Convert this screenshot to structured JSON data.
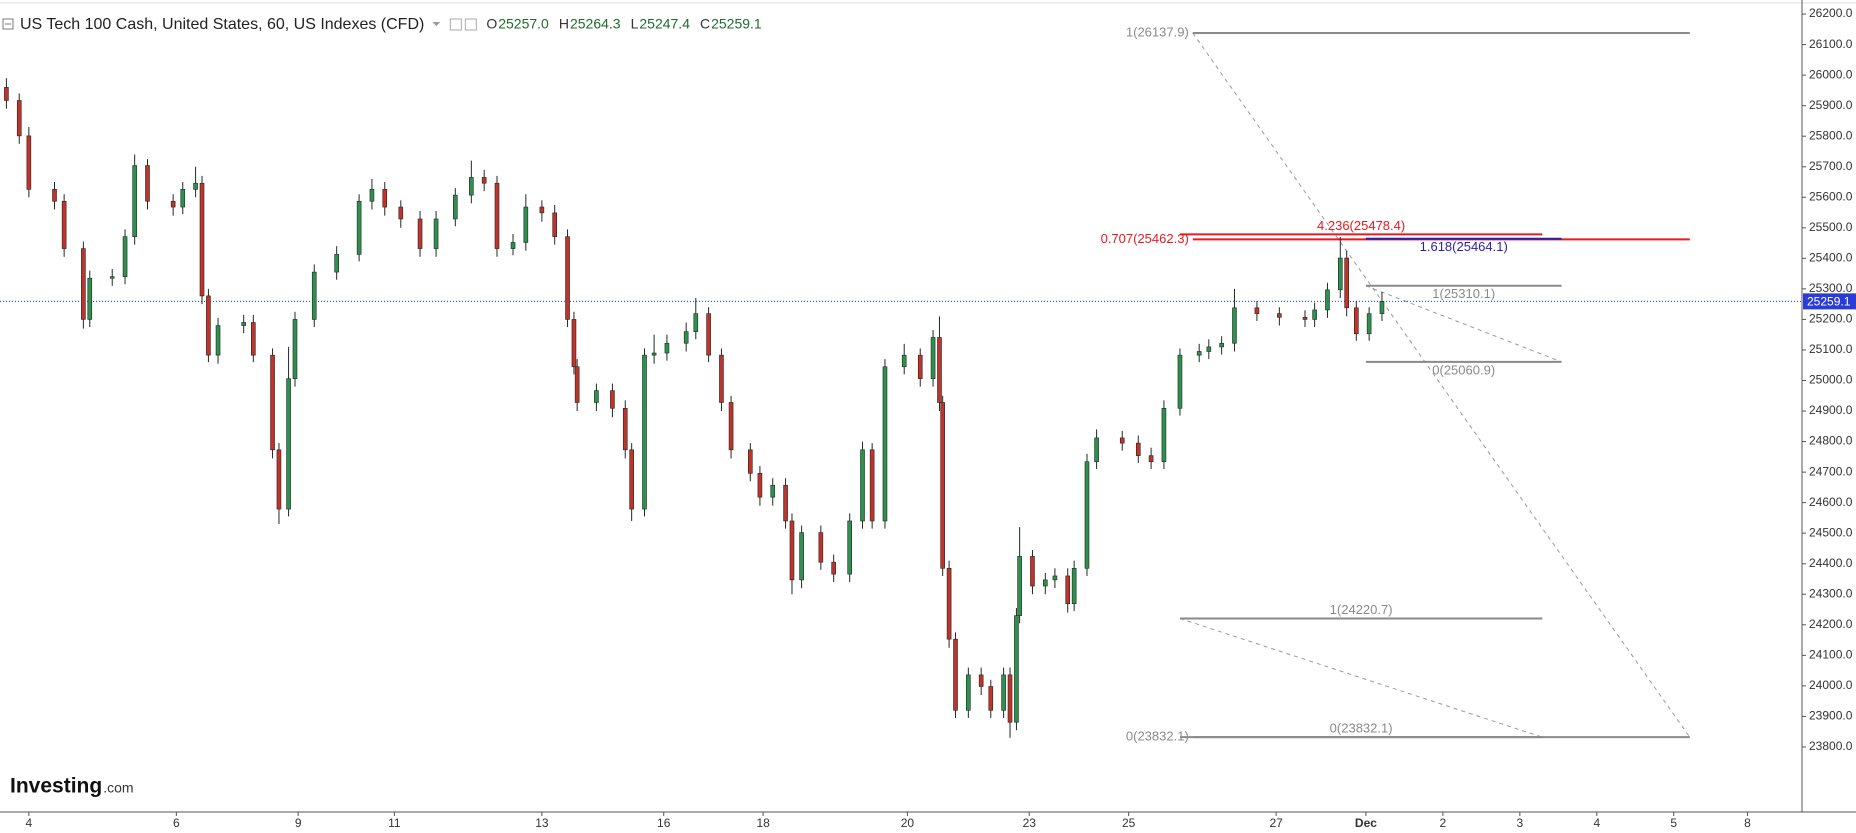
{
  "chart_data": {
    "type": "candlestick",
    "title": "US Tech 100 Cash, United States, 60, US Indexes (CFD)",
    "ohlc_legend": [
      {
        "label": "O",
        "value": "25257.0"
      },
      {
        "label": "H",
        "value": "25264.3"
      },
      {
        "label": "L",
        "value": "25247.4"
      },
      {
        "label": "C",
        "value": "25259.1"
      }
    ],
    "x": [
      0,
      4,
      7,
      15,
      18,
      24,
      26,
      33,
      37,
      40,
      44,
      52,
      55,
      59,
      61,
      63,
      66,
      74,
      77,
      83,
      85,
      88,
      90,
      96,
      103,
      110,
      114,
      118,
      123,
      129,
      134,
      140,
      145,
      149,
      153,
      158,
      162,
      167,
      171,
      175,
      177,
      178,
      184,
      189,
      193,
      195,
      199,
      202,
      206,
      212,
      215,
      219,
      223,
      226,
      232,
      235,
      239,
      243,
      245,
      248,
      254,
      258,
      263,
      267,
      270,
      274,
      280,
      285,
      289,
      291,
      292,
      294,
      296,
      300,
      304,
      307,
      311,
      313,
      315,
      316,
      320,
      324,
      327,
      331,
      333,
      337,
      340,
      348,
      353,
      357,
      361,
      366,
      372,
      375,
      379,
      383,
      390,
      397,
      405,
      408,
      412,
      416,
      418,
      421,
      425,
      429
    ],
    "open": [
      25960,
      25917,
      25801,
      25626,
      25587,
      25432,
      25200,
      25335,
      25340,
      25471,
      25704,
      25587,
      25568,
      25626,
      25646,
      25277,
      25083,
      25180,
      25190,
      25083,
      24773,
      24579,
      25006,
      25200,
      25355,
      25413,
      25587,
      25626,
      25568,
      25529,
      25432,
      25529,
      25607,
      25665,
      25646,
      25432,
      25452,
      25568,
      25549,
      25471,
      25200,
      25045,
      24928,
      24967,
      24909,
      24773,
      24579,
      25083,
      25090,
      25122,
      25160,
      25219,
      25083,
      24928,
      24773,
      24696,
      24618,
      24657,
      24540,
      24347,
      24502,
      24405,
      24366,
      24540,
      24773,
      24540,
      25045,
      25083,
      25006,
      25141,
      24928,
      24385,
      24153,
      23920,
      24036,
      23998,
      23920,
      24036,
      23881,
      24230,
      24424,
      24327,
      24347,
      24360,
      24269,
      24385,
      24734,
      24812,
      24795,
      24754,
      24734,
      24909,
      25083,
      25095,
      25110,
      25122,
      25238,
      25219,
      25207,
      25200,
      25231,
      25297,
      25401,
      25238,
      25153,
      25219
    ],
    "high": [
      25990,
      25940,
      25830,
      25650,
      25610,
      25455,
      25360,
      25365,
      25495,
      25740,
      25725,
      25610,
      25650,
      25700,
      25670,
      25300,
      25205,
      25215,
      25215,
      25105,
      24795,
      25110,
      25225,
      25380,
      25440,
      25610,
      25660,
      25650,
      25590,
      25555,
      25555,
      25630,
      25720,
      25690,
      25670,
      25480,
      25610,
      25590,
      25575,
      25495,
      25225,
      25070,
      24990,
      24990,
      24935,
      24795,
      25105,
      25150,
      25150,
      25190,
      25270,
      25240,
      25105,
      24950,
      24795,
      24720,
      24680,
      24680,
      24565,
      24525,
      24525,
      24430,
      24565,
      24800,
      24795,
      25070,
      25120,
      25105,
      25165,
      25210,
      24950,
      24410,
      24175,
      24060,
      24060,
      24020,
      24060,
      24060,
      24255,
      24520,
      24445,
      24370,
      24385,
      24385,
      24410,
      24760,
      24840,
      24835,
      24820,
      24780,
      24935,
      25105,
      25120,
      25135,
      25145,
      25300,
      25260,
      25240,
      25230,
      25255,
      25320,
      25470,
      25425,
      25260,
      25240,
      25290
    ],
    "low": [
      25890,
      25775,
      25600,
      25560,
      25405,
      25170,
      25175,
      25310,
      25315,
      25445,
      25560,
      25540,
      25545,
      25600,
      25250,
      25060,
      25055,
      25155,
      25060,
      24745,
      24530,
      24555,
      24980,
      25175,
      25330,
      25390,
      25560,
      25540,
      25500,
      25405,
      25405,
      25505,
      25580,
      25620,
      25405,
      25410,
      25425,
      25520,
      25445,
      25175,
      25020,
      24900,
      24900,
      24880,
      24745,
      24540,
      24555,
      25055,
      25065,
      25095,
      25135,
      25060,
      24900,
      24745,
      24670,
      24590,
      24590,
      24515,
      24300,
      24320,
      24380,
      24340,
      24340,
      24515,
      24515,
      24515,
      25020,
      24980,
      24980,
      24900,
      24360,
      24125,
      23895,
      23895,
      23970,
      23895,
      23895,
      23830,
      23855,
      24205,
      24300,
      24300,
      24320,
      24240,
      24245,
      24360,
      24710,
      24770,
      24730,
      24710,
      24710,
      24885,
      25060,
      25070,
      25085,
      25095,
      25195,
      25180,
      25175,
      25175,
      25205,
      25270,
      25210,
      25130,
      25130,
      25195
    ],
    "close": [
      25917,
      25801,
      25626,
      25587,
      25432,
      25200,
      25335,
      25340,
      25471,
      25704,
      25587,
      25568,
      25626,
      25646,
      25277,
      25083,
      25180,
      25190,
      25083,
      24773,
      24579,
      25006,
      25200,
      25355,
      25413,
      25587,
      25626,
      25568,
      25529,
      25432,
      25529,
      25607,
      25665,
      25646,
      25432,
      25452,
      25568,
      25549,
      25471,
      25200,
      25045,
      24928,
      24967,
      24909,
      24773,
      24579,
      25083,
      25090,
      25122,
      25160,
      25219,
      25083,
      24928,
      24773,
      24696,
      24618,
      24657,
      24540,
      24347,
      24502,
      24405,
      24366,
      24540,
      24773,
      24540,
      25045,
      25083,
      25006,
      25141,
      24928,
      24385,
      24153,
      23920,
      24036,
      23998,
      23920,
      24036,
      23881,
      24230,
      24424,
      24327,
      24347,
      24360,
      24269,
      24385,
      24734,
      24812,
      24795,
      24754,
      24734,
      24909,
      25083,
      25095,
      25110,
      25122,
      25238,
      25219,
      25207,
      25200,
      25231,
      25297,
      25401,
      25238,
      25153,
      25219,
      25259
    ],
    "up_color": "#2f8f4e",
    "down_color": "#c0322b",
    "outline_color": "#1e2a22",
    "xlim": [
      -2,
      560
    ],
    "ylim": [
      23587,
      26246
    ],
    "xticks": [
      {
        "value": 7,
        "label": "4"
      },
      {
        "value": 53,
        "label": "6"
      },
      {
        "value": 91,
        "label": "9"
      },
      {
        "value": 121,
        "label": "11"
      },
      {
        "value": 167,
        "label": "13"
      },
      {
        "value": 205,
        "label": "16"
      },
      {
        "value": 236,
        "label": "18"
      },
      {
        "value": 281,
        "label": "20"
      },
      {
        "value": 319,
        "label": "23"
      },
      {
        "value": 350,
        "label": "25"
      },
      {
        "value": 396,
        "label": "27"
      },
      {
        "value": 424,
        "label": "Dec"
      },
      {
        "value": 448,
        "label": "2"
      },
      {
        "value": 472,
        "label": "3"
      },
      {
        "value": 496,
        "label": "4"
      },
      {
        "value": 520,
        "label": "5"
      },
      {
        "value": 543,
        "label": "8"
      }
    ],
    "yticks": [
      {
        "value": 23800,
        "label": "23800.0"
      },
      {
        "value": 23900,
        "label": "23900.0"
      },
      {
        "value": 24000,
        "label": "24000.0"
      },
      {
        "value": 24100,
        "label": "24100.0"
      },
      {
        "value": 24200,
        "label": "24200.0"
      },
      {
        "value": 24300,
        "label": "24300.0"
      },
      {
        "value": 24400,
        "label": "24400.0"
      },
      {
        "value": 24500,
        "label": "24500.0"
      },
      {
        "value": 24600,
        "label": "24600.0"
      },
      {
        "value": 24700,
        "label": "24700.0"
      },
      {
        "value": 24800,
        "label": "24800.0"
      },
      {
        "value": 24900,
        "label": "24900.0"
      },
      {
        "value": 25000,
        "label": "25000.0"
      },
      {
        "value": 25100,
        "label": "25100.0"
      },
      {
        "value": 25200,
        "label": "25200.0"
      },
      {
        "value": 25300,
        "label": "25300.0"
      },
      {
        "value": 25400,
        "label": "25400.0"
      },
      {
        "value": 25500,
        "label": "25500.0"
      },
      {
        "value": 25600,
        "label": "25600.0"
      },
      {
        "value": 25700,
        "label": "25700.0"
      },
      {
        "value": 25800,
        "label": "25800.0"
      },
      {
        "value": 25900,
        "label": "25900.0"
      },
      {
        "value": 26000,
        "label": "26000.0"
      },
      {
        "value": 26100,
        "label": "26100.0"
      },
      {
        "value": 26200,
        "label": "26200.0"
      }
    ],
    "last_price": 25259.1,
    "last_price_color": "#2b3bd6",
    "drawings": [
      {
        "x": [
          370,
          525
        ],
        "from": 26137.9,
        "to": 23832.1,
        "levels": [
          {
            "value": 26137.9,
            "label": "1(26137.9)",
            "label_pos": "left",
            "color": "#8a8a8a"
          },
          {
            "value": 25462.3,
            "label": "0.707(25462.3)",
            "label_pos": "left",
            "color": "#e8191f"
          },
          {
            "value": 23832.1,
            "label": "0(23832.1)",
            "label_pos": "left",
            "color": "#8a8a8a"
          }
        ]
      },
      {
        "x": [
          366,
          479
        ],
        "from": 24220.7,
        "to": 23832.1,
        "levels": [
          {
            "value": 24220.7,
            "label": "1(24220.7)",
            "label_pos": "above",
            "color": "#8a8a8a"
          },
          {
            "value": 25478.4,
            "label": "4.236(25478.4)",
            "label_pos": "above",
            "color": "#e8191f"
          },
          {
            "value": 23832.1,
            "label": "0(23832.1)",
            "label_pos": "above",
            "color": "#8a8a8a"
          }
        ]
      },
      {
        "x": [
          424,
          485
        ],
        "from": 25310.1,
        "to": 25060.9,
        "levels": [
          {
            "value": 25310.1,
            "label": "1(25310.1)",
            "label_pos": "below",
            "color": "#8a8a8a"
          },
          {
            "value": 25464.1,
            "label": "1.618(25464.1)",
            "label_pos": "below",
            "color": "#2a1fa8"
          },
          {
            "value": 25060.9,
            "label": "0(25060.9)",
            "label_pos": "below",
            "color": "#8a8a8a"
          }
        ]
      }
    ],
    "watermark": {
      "brand": "Investing",
      "suffix": ".com"
    }
  }
}
